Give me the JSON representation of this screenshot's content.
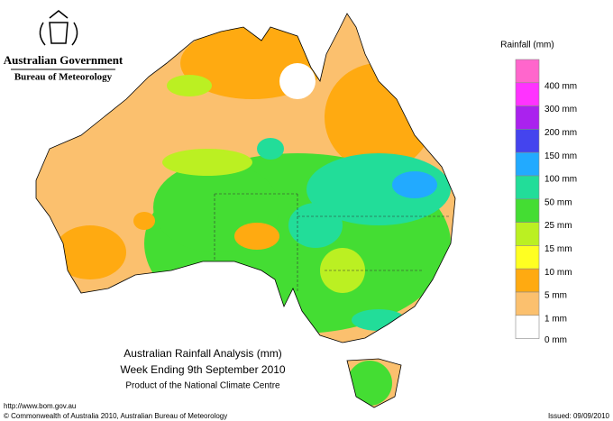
{
  "header": {
    "government": "Australian Government",
    "bureau": "Bureau of Meteorology"
  },
  "legend": {
    "title": "Rainfall (mm)",
    "items": [
      {
        "label": null,
        "color": "#ff66cc"
      },
      {
        "label": "400 mm",
        "color": "#ff33ff"
      },
      {
        "label": "300 mm",
        "color": "#aa22ee"
      },
      {
        "label": "200 mm",
        "color": "#4444ee"
      },
      {
        "label": "150 mm",
        "color": "#22aaff"
      },
      {
        "label": "100 mm",
        "color": "#22dd99"
      },
      {
        "label": "50 mm",
        "color": "#44dd33"
      },
      {
        "label": "25 mm",
        "color": "#bbf022"
      },
      {
        "label": "15 mm",
        "color": "#ffff22"
      },
      {
        "label": "10 mm",
        "color": "#ffaa11"
      },
      {
        "label": "5 mm",
        "color": "#fbc06e"
      },
      {
        "label": "1 mm",
        "color": "#ffffff"
      }
    ],
    "bottom_label": "0 mm"
  },
  "map_title": {
    "line1": "Australian Rainfall Analysis (mm)",
    "line2": "Week Ending 9th September 2010",
    "line3": "Product of the National Climate Centre"
  },
  "footer": {
    "url": "http://www.bom.gov.au",
    "copyright": "© Commonwealth of Australia 2010, Australian Bureau of Meteorology",
    "issued": "Issued: 09/09/2010"
  }
}
